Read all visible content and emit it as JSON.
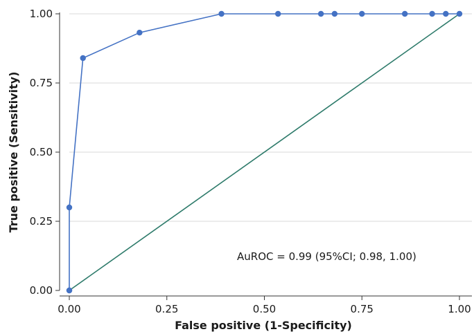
{
  "chart_data": {
    "type": "line",
    "title": "",
    "xlabel": "False positive (1-Specificity)",
    "ylabel": "True positive (Sensitivity)",
    "xlim": [
      0,
      1
    ],
    "ylim": [
      0,
      1
    ],
    "x_ticks": [
      "0.00",
      "0.25",
      "0.50",
      "0.75",
      "1.00"
    ],
    "y_ticks": [
      "0.00",
      "0.25",
      "0.50",
      "0.75",
      "1.00"
    ],
    "grid": "horizontal",
    "annotation": "AuROC = 0.99 (95%CI; 0.98, 1.00)",
    "series": [
      {
        "kind": "roc-curve",
        "color": "#4472c4",
        "x": [
          0,
          0,
          0,
          0.035,
          0.18,
          0.39,
          0.535,
          0.645,
          0.68,
          0.75,
          0.86,
          0.93,
          0.965,
          1.0
        ],
        "y": [
          0,
          0,
          0.3,
          0.84,
          0.932,
          1.0,
          1.0,
          1.0,
          1.0,
          1.0,
          1.0,
          1.0,
          1.0,
          1.0
        ]
      },
      {
        "kind": "reference-line",
        "color": "#2e7b6b",
        "x": [
          0,
          1
        ],
        "y": [
          0,
          1
        ]
      }
    ]
  }
}
